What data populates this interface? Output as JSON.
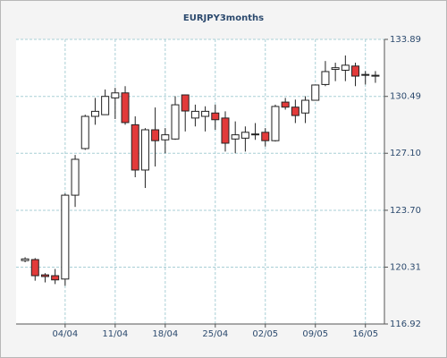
{
  "chart_data": {
    "type": "candlestick",
    "title": "EURJPY3months",
    "categories": [
      null,
      null,
      null,
      null,
      "04/04",
      null,
      null,
      null,
      null,
      "11/04",
      null,
      null,
      null,
      null,
      "18/04",
      null,
      null,
      null,
      null,
      "25/04",
      null,
      null,
      null,
      null,
      "02/05",
      null,
      null,
      null,
      null,
      "09/05",
      null,
      null,
      null,
      null,
      "16/05",
      null
    ],
    "open": [
      120.7,
      120.76,
      119.85,
      119.8,
      119.6,
      124.6,
      127.38,
      129.3,
      129.4,
      130.4,
      130.7,
      128.8,
      126.1,
      128.5,
      127.9,
      127.95,
      130.58,
      129.2,
      129.3,
      129.5,
      129.2,
      127.95,
      128.0,
      128.25,
      128.35,
      127.85,
      130.15,
      129.85,
      129.5,
      130.26,
      131.2,
      132.1,
      132.05,
      132.3,
      131.8,
      131.7
    ],
    "high": [
      120.9,
      120.85,
      119.95,
      120.2,
      124.7,
      127.0,
      129.4,
      130.4,
      130.9,
      131.0,
      131.1,
      129.3,
      128.6,
      129.83,
      128.6,
      130.5,
      130.6,
      130.0,
      129.9,
      130.0,
      129.6,
      129.0,
      128.7,
      128.9,
      128.6,
      130.0,
      130.4,
      130.3,
      130.5,
      131.2,
      132.6,
      132.5,
      132.93,
      132.5,
      132.0,
      132.0
    ],
    "low": [
      120.6,
      119.5,
      119.4,
      119.3,
      119.2,
      123.9,
      127.3,
      128.8,
      129.4,
      129.14,
      128.8,
      125.67,
      125.03,
      126.31,
      127.1,
      127.9,
      128.4,
      128.7,
      128.4,
      128.5,
      127.2,
      127.1,
      127.2,
      127.9,
      127.5,
      127.8,
      129.7,
      128.9,
      128.9,
      130.3,
      131.1,
      131.4,
      131.4,
      131.1,
      131.2,
      131.3
    ],
    "close": [
      120.8,
      119.8,
      119.75,
      119.55,
      124.6,
      126.74,
      129.3,
      129.6,
      130.49,
      130.7,
      128.93,
      126.1,
      128.5,
      127.85,
      128.2,
      129.99,
      129.62,
      129.6,
      129.6,
      129.1,
      127.7,
      128.2,
      128.35,
      128.25,
      127.85,
      129.89,
      129.85,
      129.35,
      130.26,
      131.17,
      131.97,
      132.2,
      132.35,
      131.7,
      131.75,
      131.75
    ],
    "up_color": "#ffffff",
    "down_color": "#e23a3a",
    "ylim": [
      116.92,
      133.89
    ],
    "yticks": [
      116.92,
      120.31,
      {
        "value": 123.7,
        "label": "123.70"
      },
      {
        "value": 127.1,
        "label": "127.10"
      },
      130.49,
      133.89
    ],
    "grid": true
  }
}
